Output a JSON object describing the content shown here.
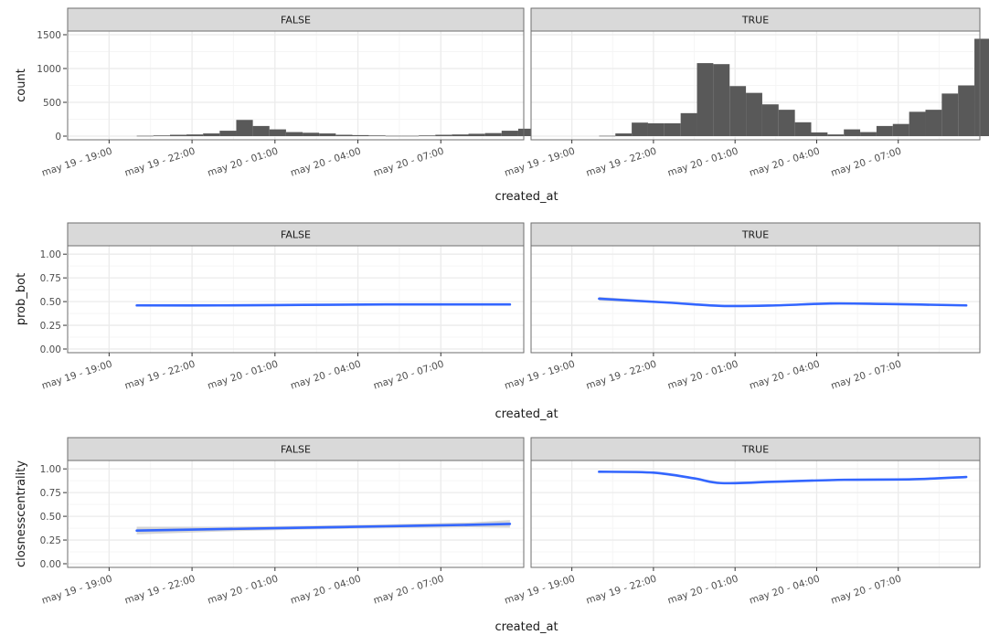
{
  "colors": {
    "panel_border": "#6e6e6e",
    "strip_fill": "#d9d9d9",
    "grid_major": "#ebebeb",
    "grid_minor": "#f5f5f5",
    "histogram_fill": "#595959",
    "smooth_line": "#3366ff",
    "confidence_band": "#c8c8c8",
    "axis_text": "#4d4d4d",
    "title_text": "#1a1a1a"
  },
  "chart_data": [
    {
      "type": "histogram",
      "facet_by": [
        "FALSE",
        "TRUE"
      ],
      "xlabel": "created_at",
      "ylabel": "count",
      "x_ticks": [
        "may 19 - 19:00",
        "may 19 - 22:00",
        "may 20 - 01:00",
        "may 20 - 04:00",
        "may 20 - 07:00"
      ],
      "ylim": [
        0,
        1500
      ],
      "y_ticks": [
        "0",
        "500",
        "1000",
        "1500"
      ],
      "bin_width_hours": 0.6,
      "x_start": "may 19 - 20:00",
      "panels": [
        {
          "facet": "FALSE",
          "counts": [
            5,
            10,
            20,
            25,
            40,
            80,
            240,
            150,
            100,
            60,
            50,
            40,
            20,
            15,
            10,
            5,
            5,
            10,
            20,
            25,
            35,
            45,
            80,
            110,
            140,
            150,
            150
          ]
        },
        {
          "facet": "TRUE",
          "counts": [
            5,
            40,
            200,
            190,
            190,
            340,
            1080,
            1065,
            740,
            640,
            470,
            390,
            205,
            55,
            25,
            100,
            60,
            150,
            180,
            360,
            390,
            630,
            750,
            1440,
            1350
          ]
        }
      ],
      "grid": true
    },
    {
      "type": "line",
      "facet_by": [
        "FALSE",
        "TRUE"
      ],
      "xlabel": "created_at",
      "ylabel": "prob_bot",
      "x_ticks": [
        "may 19 - 19:00",
        "may 19 - 22:00",
        "may 20 - 01:00",
        "may 20 - 04:00",
        "may 20 - 07:00"
      ],
      "ylim": [
        0,
        1.05
      ],
      "y_ticks": [
        "0.00",
        "0.25",
        "0.50",
        "0.75",
        "1.00"
      ],
      "panels": [
        {
          "facet": "FALSE",
          "x": [
            "may 19 - 20:00",
            "may 19 - 23:00",
            "may 20 - 02:00",
            "may 20 - 05:00",
            "may 20 - 08:00",
            "may 20 - 09:30"
          ],
          "y": [
            0.46,
            0.46,
            0.465,
            0.47,
            0.47,
            0.47
          ],
          "band": [
            0.01,
            0.01,
            0.01,
            0.01,
            0.01,
            0.01
          ]
        },
        {
          "facet": "TRUE",
          "x": [
            "may 19 - 20:00",
            "may 19 - 22:30",
            "may 20 - 00:30",
            "may 20 - 02:30",
            "may 20 - 04:30",
            "may 20 - 06:30",
            "may 20 - 09:30"
          ],
          "y": [
            0.53,
            0.49,
            0.455,
            0.46,
            0.48,
            0.475,
            0.46
          ],
          "band": [
            0.02,
            0.01,
            0.01,
            0.01,
            0.01,
            0.01,
            0.01
          ]
        }
      ],
      "grid": true
    },
    {
      "type": "line",
      "facet_by": [
        "FALSE",
        "TRUE"
      ],
      "xlabel": "created_at",
      "ylabel": "closnesscentrality",
      "x_ticks": [
        "may 19 - 19:00",
        "may 19 - 22:00",
        "may 20 - 01:00",
        "may 20 - 04:00",
        "may 20 - 07:00"
      ],
      "ylim": [
        0,
        1.05
      ],
      "y_ticks": [
        "0.00",
        "0.25",
        "0.50",
        "0.75",
        "1.00"
      ],
      "panels": [
        {
          "facet": "FALSE",
          "x": [
            "may 19 - 20:00",
            "may 19 - 23:00",
            "may 20 - 02:00",
            "may 20 - 05:00",
            "may 20 - 08:00",
            "may 20 - 09:30"
          ],
          "y": [
            0.35,
            0.365,
            0.38,
            0.395,
            0.41,
            0.42
          ],
          "band": [
            0.04,
            0.025,
            0.02,
            0.02,
            0.025,
            0.04
          ]
        },
        {
          "facet": "TRUE",
          "x": [
            "may 19 - 20:00",
            "may 19 - 22:00",
            "may 19 - 23:30",
            "may 20 - 00:30",
            "may 20 - 02:30",
            "may 20 - 05:00",
            "may 20 - 07:30",
            "may 20 - 09:30"
          ],
          "y": [
            0.97,
            0.96,
            0.9,
            0.85,
            0.865,
            0.885,
            0.89,
            0.915
          ],
          "band": [
            0.01,
            0.01,
            0.01,
            0.01,
            0.01,
            0.01,
            0.01,
            0.01
          ]
        }
      ],
      "grid": true
    }
  ]
}
